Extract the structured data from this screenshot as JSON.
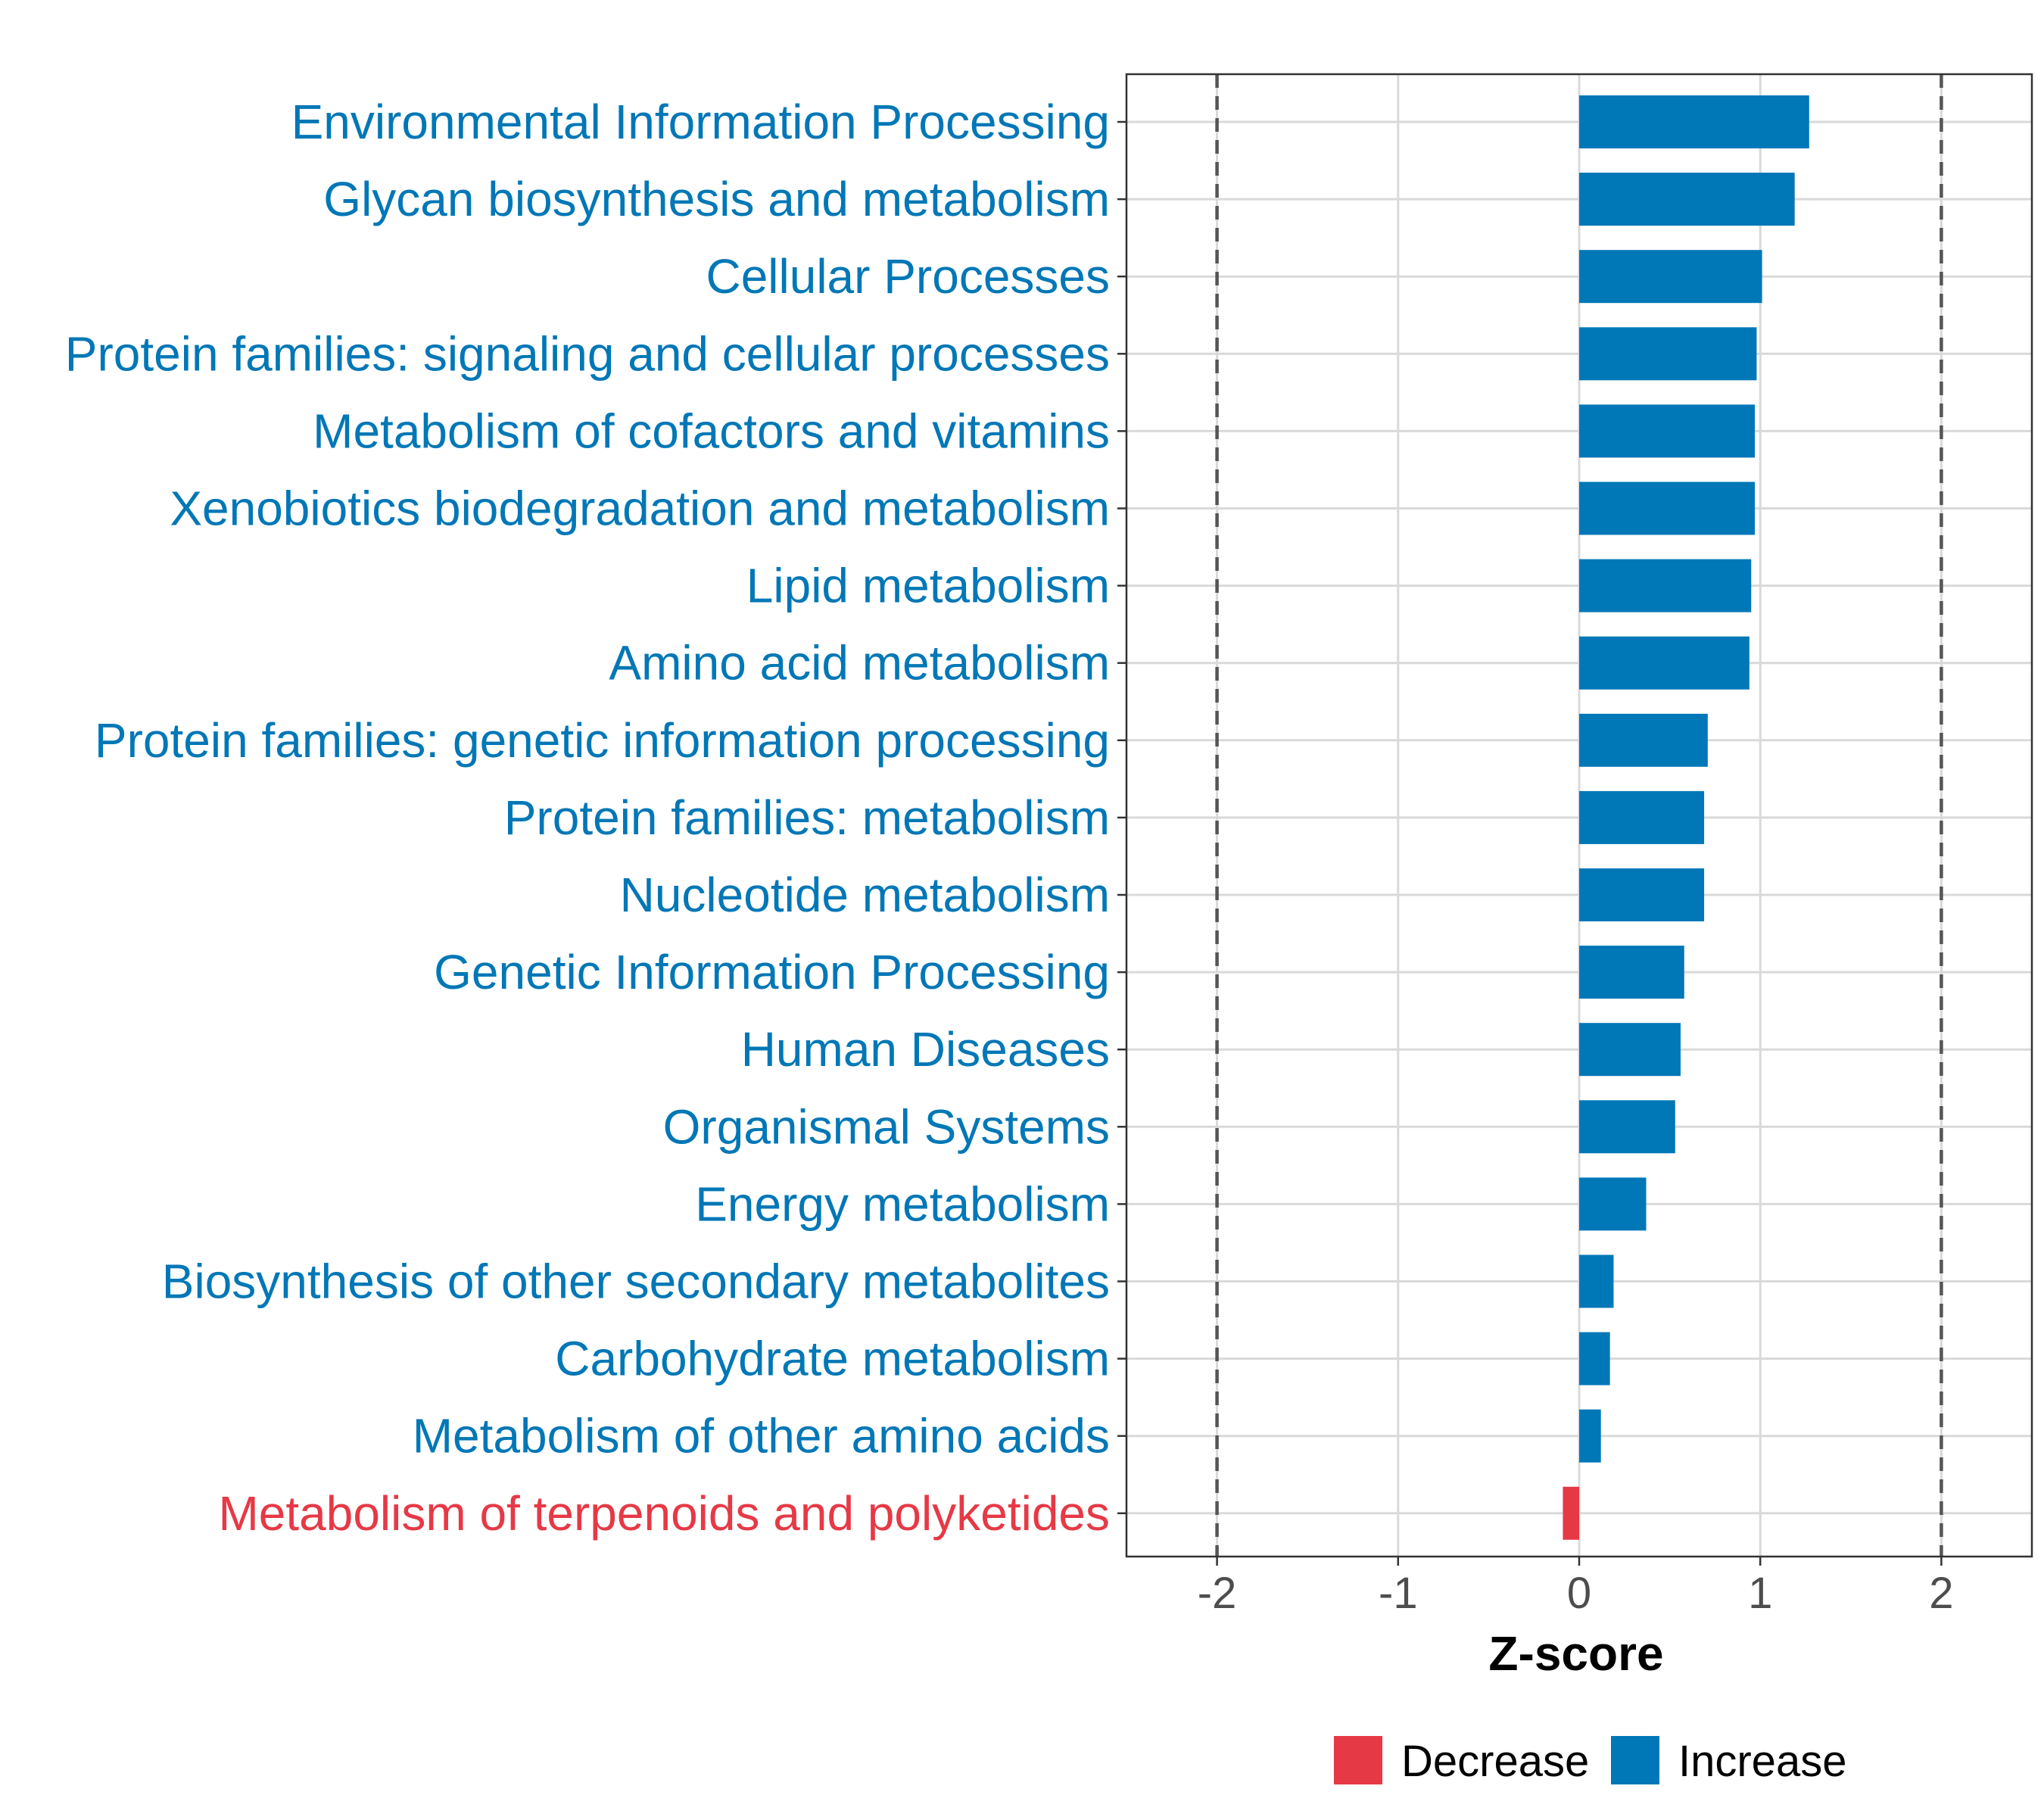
{
  "chart_data": {
    "type": "bar",
    "orientation": "horizontal",
    "xlabel": "Z-score",
    "xlim": [
      -2.5,
      2.5
    ],
    "xticks": [
      -2,
      -1,
      0,
      1,
      2
    ],
    "xtick_labels": [
      "-2",
      "-1",
      "0",
      "1",
      "2"
    ],
    "reference_lines": [
      -2,
      2
    ],
    "grid": true,
    "categories": [
      "Environmental Information Processing",
      "Glycan biosynthesis and metabolism",
      "Cellular Processes",
      "Protein families: signaling and cellular processes",
      "Metabolism of cofactors and vitamins",
      "Xenobiotics biodegradation and metabolism",
      "Lipid metabolism",
      "Amino acid metabolism",
      "Protein families: genetic information processing",
      "Protein families: metabolism",
      "Nucleotide metabolism",
      "Genetic Information Processing",
      "Human Diseases",
      "Organismal Systems",
      "Energy metabolism",
      "Biosynthesis of other secondary metabolites",
      "Carbohydrate metabolism",
      "Metabolism of other amino acids",
      "Metabolism of terpenoids and polyketides"
    ],
    "values": [
      1.27,
      1.19,
      1.01,
      0.98,
      0.97,
      0.97,
      0.95,
      0.94,
      0.71,
      0.69,
      0.69,
      0.58,
      0.56,
      0.53,
      0.37,
      0.19,
      0.17,
      0.12,
      -0.09
    ],
    "legend": {
      "position": "bottom",
      "entries": [
        {
          "label": "Decrease",
          "color": "#E63946"
        },
        {
          "label": "Increase",
          "color": "#0077B6"
        }
      ]
    },
    "colors": {
      "decrease": "#E63946",
      "increase": "#0077B6",
      "grid": "#D9D9D9",
      "reference_line": "#555555",
      "frame": "#333333",
      "tick_text": "#4D4D4D"
    }
  }
}
